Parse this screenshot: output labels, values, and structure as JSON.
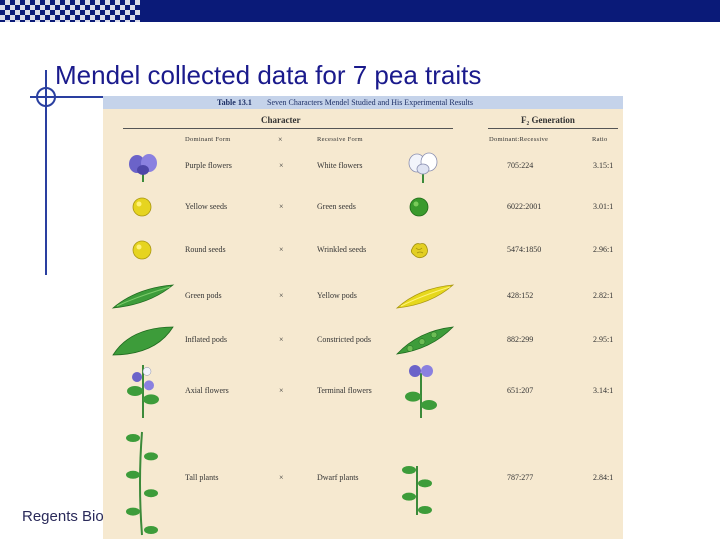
{
  "slide": {
    "title": "Mendel collected data for 7 pea traits",
    "footer": "Regents Bio"
  },
  "table": {
    "number": "Table 13.1",
    "caption": "Seven Characters Mendel Studied and His Experimental Results",
    "group_character": "Character",
    "group_f2": "F₂ Generation",
    "headers": {
      "dominant": "Dominant Form",
      "cross": "×",
      "recessive": "Recessive Form",
      "dom_rec": "Dominant:Recessive",
      "ratio": "Ratio"
    },
    "rows": [
      {
        "dominant": "Purple flowers",
        "cross": "×",
        "recessive": "White flowers",
        "counts": "705:224",
        "ratio": "3.15:1",
        "dom_icon": "purple-flower-icon",
        "rec_icon": "white-flower-icon"
      },
      {
        "dominant": "Yellow seeds",
        "cross": "×",
        "recessive": "Green seeds",
        "counts": "6022:2001",
        "ratio": "3.01:1",
        "dom_icon": "yellow-seed-icon",
        "rec_icon": "green-seed-icon"
      },
      {
        "dominant": "Round seeds",
        "cross": "×",
        "recessive": "Wrinkled seeds",
        "counts": "5474:1850",
        "ratio": "2.96:1",
        "dom_icon": "round-seed-icon",
        "rec_icon": "wrinkled-seed-icon"
      },
      {
        "dominant": "Green pods",
        "cross": "×",
        "recessive": "Yellow pods",
        "counts": "428:152",
        "ratio": "2.82:1",
        "dom_icon": "green-pod-icon",
        "rec_icon": "yellow-pod-icon"
      },
      {
        "dominant": "Inflated pods",
        "cross": "×",
        "recessive": "Constricted pods",
        "counts": "882:299",
        "ratio": "2.95:1",
        "dom_icon": "inflated-pod-icon",
        "rec_icon": "constricted-pod-icon"
      },
      {
        "dominant": "Axial flowers",
        "cross": "×",
        "recessive": "Terminal flowers",
        "counts": "651:207",
        "ratio": "3.14:1",
        "dom_icon": "axial-flowers-icon",
        "rec_icon": "terminal-flowers-icon"
      },
      {
        "dominant": "Tall plants",
        "cross": "×",
        "recessive": "Dwarf plants",
        "counts": "787:277",
        "ratio": "2.84:1",
        "dom_icon": "tall-plant-icon",
        "rec_icon": "dwarf-plant-icon"
      }
    ]
  },
  "colors": {
    "title": "#1a1a8c",
    "table_bg": "#f6e9d0",
    "caption_bg": "#c5d3ea",
    "banner": "#0a1a78"
  }
}
